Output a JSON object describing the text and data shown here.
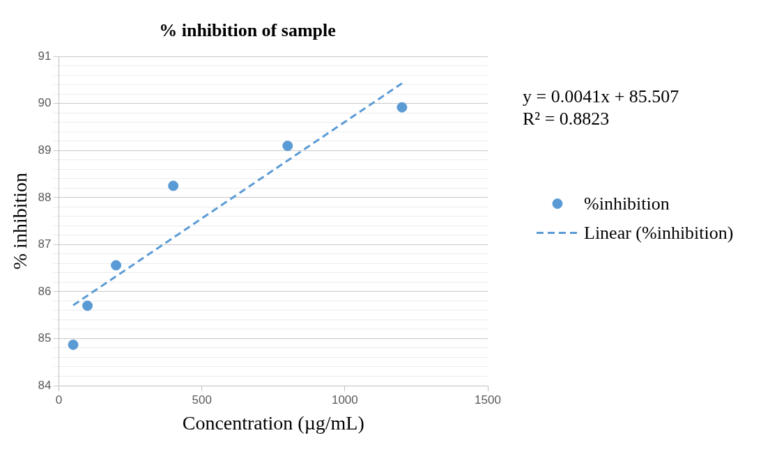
{
  "chart_data": {
    "type": "scatter",
    "title": "% inhibition of sample",
    "xlabel": "Concentration (µg/mL)",
    "ylabel": "% inhibition",
    "xlim": [
      0,
      1500
    ],
    "xticks": [
      0,
      500,
      1000,
      1500
    ],
    "ylim": [
      84,
      91
    ],
    "yticks": [
      84,
      {
        "value": 84.2,
        "label": null
      },
      {
        "value": 84.4,
        "label": null
      },
      {
        "value": 84.6,
        "label": null
      },
      {
        "value": 84.8,
        "label": null
      },
      85,
      {
        "value": 85.2,
        "label": null
      },
      {
        "value": 85.4,
        "label": null
      },
      {
        "value": 85.6,
        "label": null
      },
      {
        "value": 85.8,
        "label": null
      },
      86,
      {
        "value": 86.2,
        "label": null
      },
      {
        "value": 86.4,
        "label": null
      },
      {
        "value": 86.6,
        "label": null
      },
      {
        "value": 86.8,
        "label": null
      },
      87,
      {
        "value": 87.2,
        "label": null
      },
      {
        "value": 87.4,
        "label": null
      },
      {
        "value": 87.6,
        "label": null
      },
      {
        "value": 87.8,
        "label": null
      },
      88,
      {
        "value": 88.2,
        "label": null
      },
      {
        "value": 88.4,
        "label": null
      },
      {
        "value": 88.6,
        "label": null
      },
      {
        "value": 88.8,
        "label": null
      },
      89,
      {
        "value": 89.2,
        "label": null
      },
      {
        "value": 89.4,
        "label": null
      },
      {
        "value": 89.6,
        "label": null
      },
      {
        "value": 89.8,
        "label": null
      },
      90,
      {
        "value": 90.2,
        "label": null
      },
      {
        "value": 90.4,
        "label": null
      },
      {
        "value": 90.6,
        "label": null
      },
      {
        "value": 90.8,
        "label": null
      },
      91
    ],
    "grid": "y",
    "legend": "right",
    "series": [
      {
        "name": "%inhibition",
        "marker": "circle",
        "color": "#5b9bd5",
        "x": [
          50,
          100,
          200,
          400,
          800,
          1200
        ],
        "values": [
          84.87,
          85.7,
          86.56,
          88.25,
          89.1,
          89.92
        ]
      },
      {
        "name": "Linear (%inhibition)",
        "type": "line",
        "marker": "none",
        "line_style": "dashed",
        "color": "#5b9bd5",
        "x": [
          50,
          1200
        ],
        "values": [
          85.71,
          90.43
        ]
      }
    ],
    "annotations": [
      "y = 0.0041x + 85.507",
      "R² = 0.8823"
    ]
  }
}
